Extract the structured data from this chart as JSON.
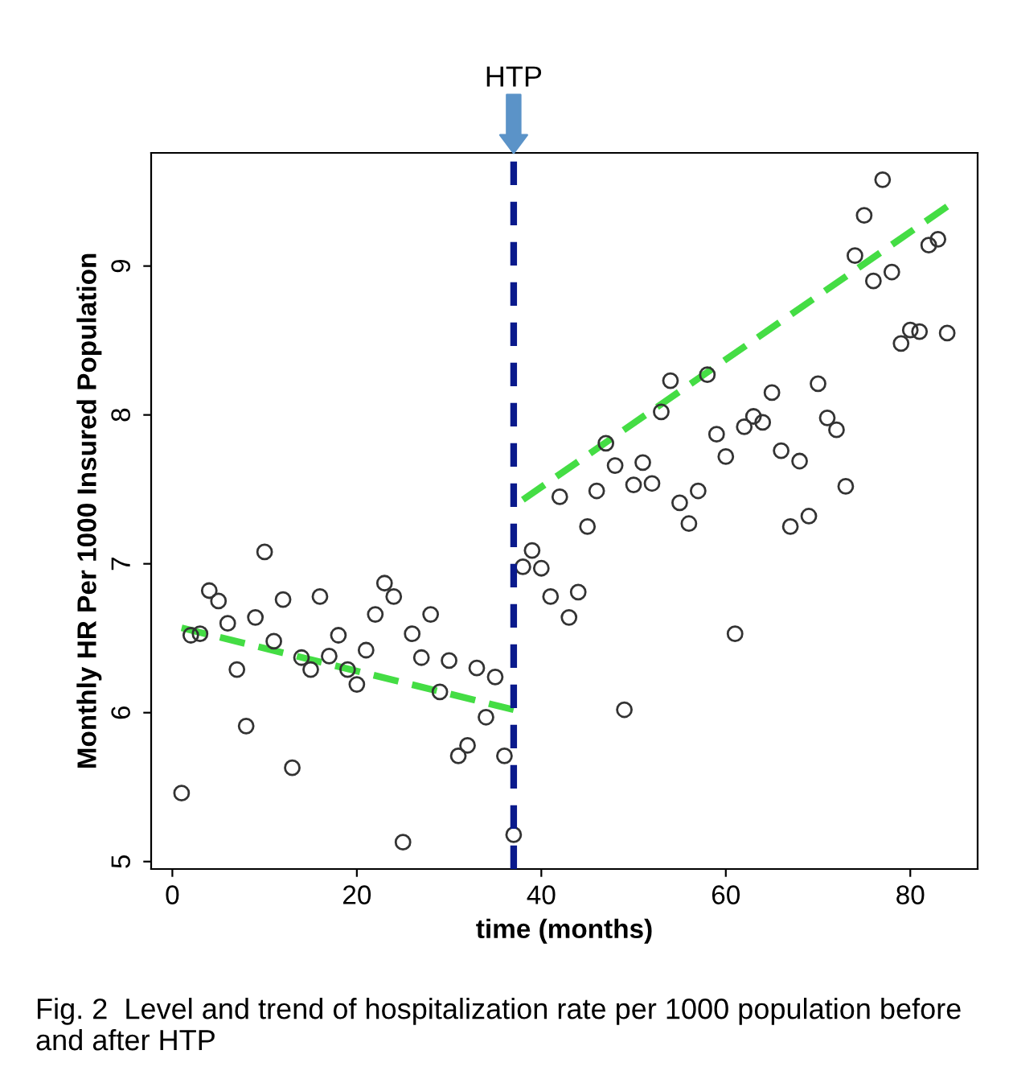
{
  "chart_data": {
    "type": "scatter",
    "xlabel": "time (months)",
    "ylabel": "Monthly HR Per 1000 Insured Population",
    "x": [
      1,
      2,
      3,
      4,
      5,
      6,
      7,
      8,
      9,
      10,
      11,
      12,
      13,
      14,
      15,
      16,
      17,
      18,
      19,
      20,
      21,
      22,
      23,
      24,
      25,
      26,
      27,
      28,
      29,
      30,
      31,
      32,
      33,
      34,
      35,
      36,
      37,
      38,
      39,
      40,
      41,
      42,
      43,
      44,
      45,
      46,
      47,
      48,
      49,
      50,
      51,
      52,
      53,
      54,
      55,
      56,
      57,
      58,
      59,
      60,
      61,
      62,
      63,
      64,
      65,
      66,
      67,
      68,
      69,
      70,
      71,
      72,
      73,
      74,
      75,
      76,
      77,
      78,
      79,
      80,
      81,
      82,
      83,
      84
    ],
    "series": [
      {
        "color": "#333333",
        "marker": "circle",
        "values": [
          5.46,
          6.52,
          6.53,
          6.82,
          6.75,
          6.6,
          6.29,
          5.91,
          6.64,
          7.08,
          6.48,
          6.76,
          5.63,
          6.37,
          6.29,
          6.78,
          6.38,
          6.52,
          6.29,
          6.19,
          6.42,
          6.66,
          6.87,
          6.78,
          5.13,
          6.53,
          6.37,
          6.66,
          6.14,
          6.35,
          5.71,
          5.78,
          6.3,
          5.97,
          6.24,
          5.71,
          5.18,
          6.98,
          7.09,
          6.97,
          6.78,
          7.45,
          6.64,
          6.81,
          7.25,
          7.49,
          7.81,
          7.66,
          6.02,
          7.53,
          7.68,
          7.54,
          8.02,
          8.23,
          7.41,
          7.27,
          7.49,
          8.27,
          7.87,
          7.72,
          6.53,
          7.92,
          7.99,
          7.95,
          8.15,
          7.76,
          7.25,
          7.69,
          7.32,
          8.21,
          7.98,
          7.9,
          7.52,
          9.07,
          9.34,
          8.9,
          9.58,
          8.96,
          8.48,
          8.57,
          8.56,
          9.14,
          9.18,
          8.55
        ]
      },
      {
        "type": "line",
        "color": "#44dd44",
        "line_style": "dashed",
        "marker": "none",
        "x": [
          1,
          37
        ],
        "values": [
          6.57,
          6.02
        ]
      },
      {
        "type": "line",
        "color": "#44dd44",
        "line_style": "dashed",
        "marker": "none",
        "x": [
          38,
          84
        ],
        "values": [
          7.43,
          9.4
        ]
      }
    ],
    "xlim": [
      -2.3,
      87.3
    ],
    "ylim": [
      4.95,
      9.76
    ],
    "xticks": [
      0,
      20,
      40,
      60,
      80
    ],
    "yticks": [
      5,
      6,
      7,
      8,
      9
    ],
    "ref_lines": [
      {
        "axis": "x",
        "value": 37,
        "label": "HTP",
        "color": "#0a1a8c",
        "line_style": "dashed"
      }
    ],
    "grid": false,
    "legend": false,
    "annotations": [
      "Fig. 2  Level and trend of hospitalization rate per 1000 population before and after HTP"
    ]
  }
}
